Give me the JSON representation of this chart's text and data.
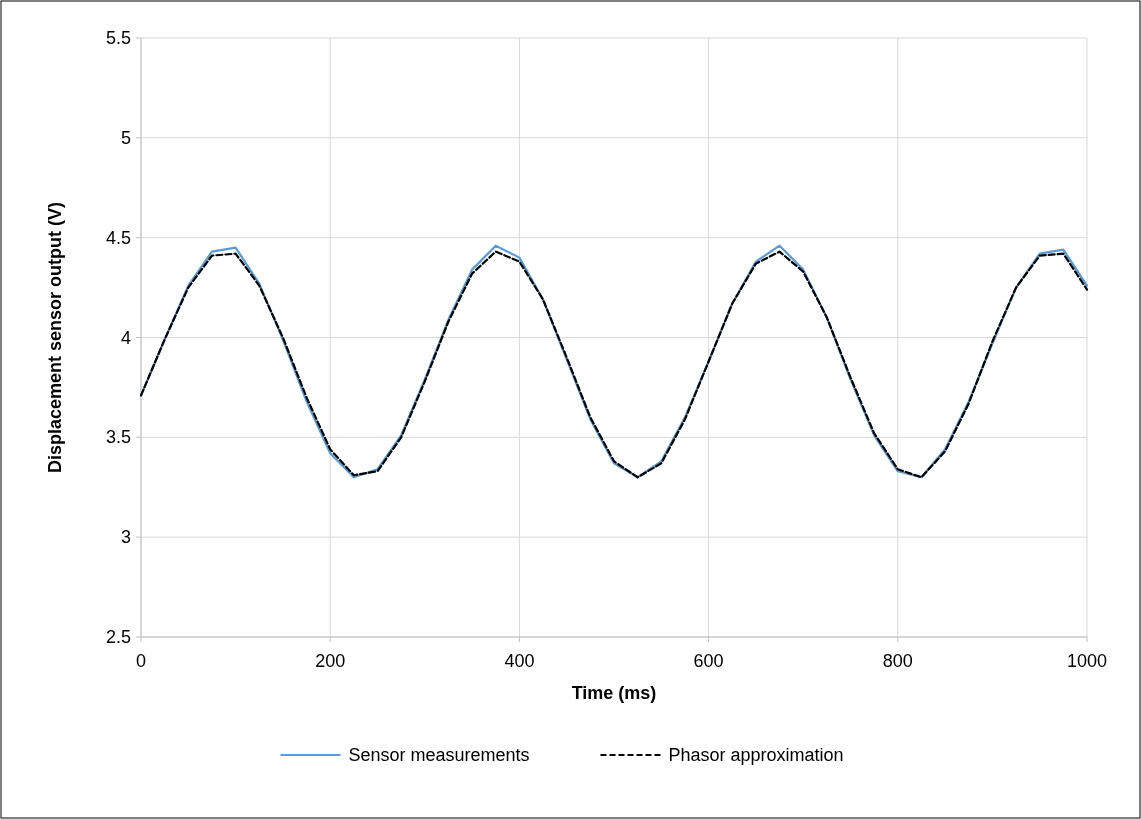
{
  "chart_data": {
    "type": "line",
    "xlabel": "Time (ms)",
    "ylabel": "Displacement sensor output (V)",
    "x": [
      0,
      25,
      50,
      75,
      100,
      125,
      150,
      175,
      200,
      225,
      250,
      275,
      300,
      325,
      350,
      375,
      400,
      425,
      450,
      475,
      500,
      525,
      550,
      575,
      600,
      625,
      650,
      675,
      700,
      725,
      750,
      775,
      800,
      825,
      850,
      875,
      900,
      925,
      950,
      975,
      1000
    ],
    "series": [
      {
        "name": "Sensor measurements",
        "color": "#5b9bd5",
        "line_style": "solid",
        "values": [
          3.71,
          3.99,
          4.26,
          4.43,
          4.45,
          4.27,
          3.99,
          3.68,
          3.42,
          3.3,
          3.34,
          3.51,
          3.79,
          4.09,
          4.34,
          4.46,
          4.4,
          4.19,
          3.89,
          3.59,
          3.37,
          3.3,
          3.38,
          3.6,
          3.88,
          4.17,
          4.38,
          4.46,
          4.34,
          4.1,
          3.79,
          3.51,
          3.33,
          3.3,
          3.44,
          3.68,
          3.97,
          4.25,
          4.42,
          4.44,
          4.26
        ]
      },
      {
        "name": "Phasor approximation",
        "color": "#000000",
        "line_style": "dashed",
        "values": [
          3.71,
          3.99,
          4.25,
          4.41,
          4.42,
          4.26,
          4.0,
          3.7,
          3.44,
          3.31,
          3.33,
          3.5,
          3.78,
          4.08,
          4.32,
          4.43,
          4.38,
          4.19,
          3.9,
          3.6,
          3.38,
          3.3,
          3.37,
          3.59,
          3.88,
          4.17,
          4.37,
          4.43,
          4.33,
          4.1,
          3.8,
          3.52,
          3.34,
          3.3,
          3.43,
          3.67,
          3.98,
          4.25,
          4.41,
          4.42,
          4.24
        ]
      }
    ],
    "xlim": [
      0,
      1000
    ],
    "xticks": [
      0,
      200,
      400,
      600,
      800,
      1000
    ],
    "ylim": [
      2.5,
      5.5
    ],
    "yticks": [
      2.5,
      3,
      3.5,
      4,
      4.5,
      5,
      5.5
    ],
    "grid": true,
    "legend": "bottom",
    "marker": "none"
  }
}
